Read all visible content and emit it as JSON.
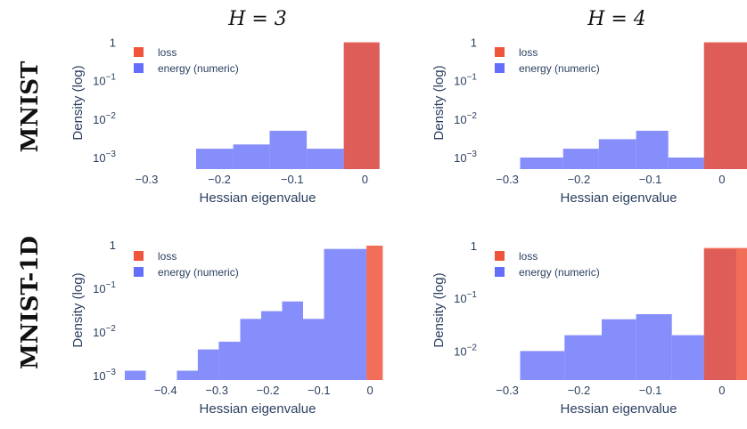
{
  "figure": {
    "column_titles": [
      "H = 3",
      "H = 4"
    ],
    "row_titles": [
      "MNIST",
      "MNIST-1D"
    ],
    "colors": {
      "loss": "#ef553b",
      "energy": "#636efa"
    }
  },
  "chart_data": [
    {
      "type": "bar",
      "row": "MNIST",
      "column": "H = 3",
      "xlabel": "Hessian eigenvalue",
      "ylabel": "Density (log)",
      "xlim": [
        -0.33,
        0.035
      ],
      "ylim_log10": [
        -3.3,
        0.15
      ],
      "xticks": [
        -0.3,
        -0.2,
        -0.1,
        0
      ],
      "xtick_labels": [
        "−0.3",
        "−0.2",
        "−0.1",
        "0"
      ],
      "yticks": [
        1,
        0.1,
        0.01,
        0.001
      ],
      "ytick_labels": [
        "1",
        "10−1",
        "10−2",
        "10−3"
      ],
      "legend": [
        "loss",
        "energy (numeric)"
      ],
      "legend_position": "top-left",
      "series": [
        {
          "name": "energy (numeric)",
          "bins": [
            [
              -0.33,
              -0.28,
              0.00025
            ],
            [
              -0.28,
              -0.232,
              0.0005
            ],
            [
              -0.232,
              -0.181,
              0.0017
            ],
            [
              -0.181,
              -0.131,
              0.0022
            ],
            [
              -0.131,
              -0.08,
              0.005
            ],
            [
              -0.08,
              -0.029,
              0.0017
            ],
            [
              -0.029,
              0.02,
              0.95
            ]
          ]
        },
        {
          "name": "loss",
          "bins": [
            [
              -0.029,
              0.02,
              1.0
            ]
          ]
        }
      ]
    },
    {
      "type": "bar",
      "row": "MNIST",
      "column": "H = 4",
      "xlabel": "Hessian eigenvalue",
      "ylabel": "Density (log)",
      "xlim": [
        -0.33,
        0.035
      ],
      "ylim_log10": [
        -3.3,
        0.15
      ],
      "xticks": [
        -0.3,
        -0.2,
        -0.1,
        0
      ],
      "xtick_labels": [
        "−0.3",
        "−0.2",
        "−0.1",
        "0"
      ],
      "yticks": [
        1,
        0.1,
        0.01,
        0.001
      ],
      "ytick_labels": [
        "1",
        "10−1",
        "10−2",
        "10−3"
      ],
      "legend": [
        "loss",
        "energy (numeric)"
      ],
      "legend_position": "top-left",
      "series": [
        {
          "name": "energy (numeric)",
          "bins": [
            [
              -0.33,
              -0.282,
              0.00025
            ],
            [
              -0.282,
              -0.222,
              0.001
            ],
            [
              -0.222,
              -0.172,
              0.0017
            ],
            [
              -0.172,
              -0.12,
              0.003
            ],
            [
              -0.12,
              -0.075,
              0.005
            ],
            [
              -0.075,
              -0.025,
              0.001
            ],
            [
              -0.025,
              0.035,
              0.95
            ]
          ]
        },
        {
          "name": "loss",
          "bins": [
            [
              -0.025,
              0.035,
              1.0
            ]
          ]
        }
      ]
    },
    {
      "type": "bar",
      "row": "MNIST-1D",
      "column": "H = 3",
      "xlabel": "Hessian eigenvalue",
      "ylabel": "Density (log)",
      "xlim": [
        -0.48,
        0.04
      ],
      "ylim_log10": [
        -3.1,
        0.1
      ],
      "xticks": [
        -0.4,
        -0.3,
        -0.2,
        -0.1,
        0
      ],
      "xtick_labels": [
        "−0.4",
        "−0.3",
        "−0.2",
        "−0.1",
        "0"
      ],
      "yticks": [
        1,
        0.1,
        0.01,
        0.001
      ],
      "ytick_labels": [
        "1",
        "10−1",
        "10−2",
        "10−3"
      ],
      "legend": [
        "loss",
        "energy (numeric)"
      ],
      "legend_position": "top-left",
      "series": [
        {
          "name": "energy (numeric)",
          "bins": [
            [
              -0.48,
              -0.439,
              0.0013
            ],
            [
              -0.378,
              -0.337,
              0.0013
            ],
            [
              -0.337,
              -0.296,
              0.004
            ],
            [
              -0.296,
              -0.254,
              0.006
            ],
            [
              -0.254,
              -0.213,
              0.02
            ],
            [
              -0.213,
              -0.172,
              0.03
            ],
            [
              -0.172,
              -0.131,
              0.05
            ],
            [
              -0.131,
              -0.09,
              0.02
            ],
            [
              -0.09,
              -0.007,
              0.8
            ]
          ]
        },
        {
          "name": "loss",
          "bins": [
            [
              -0.007,
              0.025,
              0.95
            ]
          ]
        }
      ]
    },
    {
      "type": "bar",
      "row": "MNIST-1D",
      "column": "H = 4",
      "xlabel": "Hessian eigenvalue",
      "ylabel": "Density (log)",
      "xlim": [
        -0.33,
        0.035
      ],
      "ylim_log10": [
        -2.55,
        0.1
      ],
      "xticks": [
        -0.3,
        -0.2,
        -0.1,
        0
      ],
      "xtick_labels": [
        "−0.3",
        "−0.2",
        "−0.1",
        "0"
      ],
      "yticks": [
        1,
        0.1,
        0.01
      ],
      "ytick_labels": [
        "1",
        "10−1",
        "10−2"
      ],
      "legend": [
        "loss",
        "energy (numeric)"
      ],
      "legend_position": "top-left",
      "series": [
        {
          "name": "energy (numeric)",
          "bins": [
            [
              -0.33,
              -0.282,
              0.0027
            ],
            [
              -0.282,
              -0.22,
              0.01
            ],
            [
              -0.22,
              -0.168,
              0.02
            ],
            [
              -0.168,
              -0.12,
              0.04
            ],
            [
              -0.12,
              -0.07,
              0.05
            ],
            [
              -0.07,
              -0.025,
              0.02
            ],
            [
              -0.025,
              0.02,
              0.85
            ]
          ]
        },
        {
          "name": "loss",
          "bins": [
            [
              -0.025,
              0.035,
              0.9
            ]
          ]
        }
      ]
    }
  ]
}
